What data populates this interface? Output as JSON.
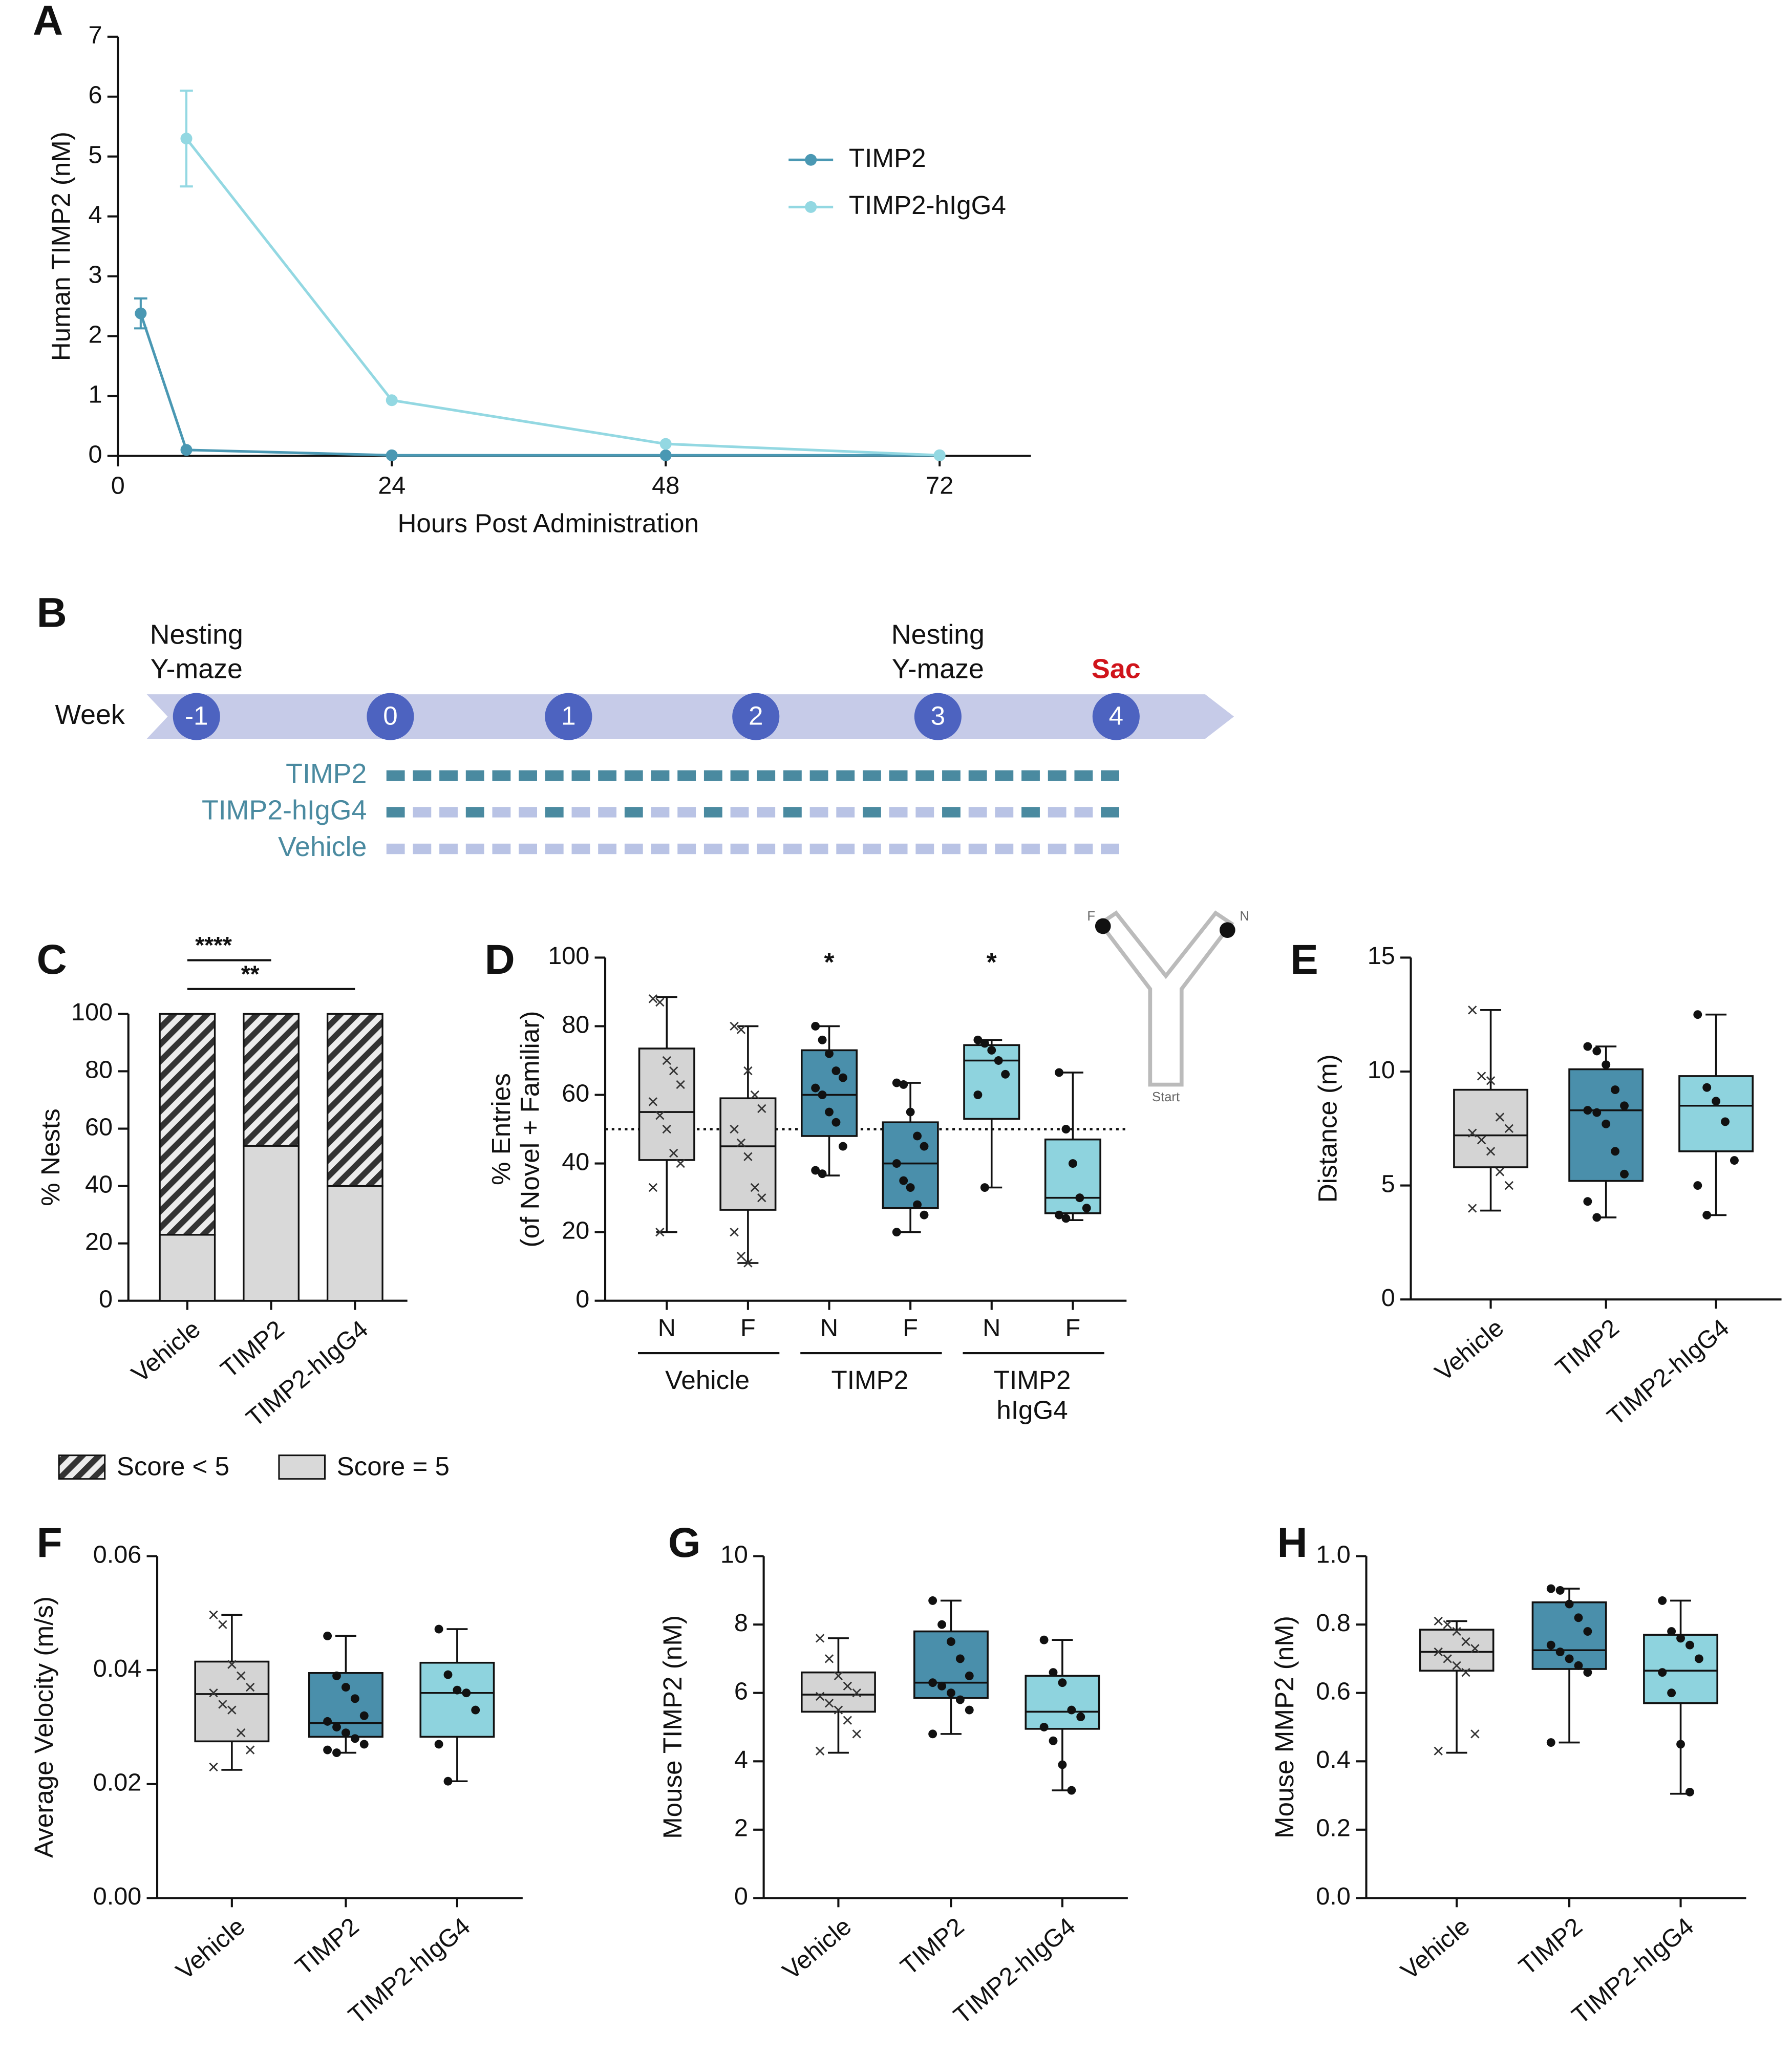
{
  "chart_data": [
    {
      "type": "line",
      "panel": "A",
      "x_label": "Hours Post Administration",
      "y_label": "Human TIMP2 (nM)",
      "xlim": [
        0,
        80
      ],
      "xticks": [
        0,
        24,
        48,
        72
      ],
      "ylim": [
        0,
        7
      ],
      "yticks": [
        0,
        1,
        2,
        3,
        4,
        5,
        6,
        7
      ],
      "series": [
        {
          "name": "TIMP2",
          "color": "#4a98b3",
          "x": [
            2,
            6,
            24,
            48,
            72
          ],
          "values": [
            2.38,
            0.1,
            0.01,
            0.01,
            0.01
          ],
          "errors": [
            0.25,
            null,
            null,
            null,
            null
          ]
        },
        {
          "name": "TIMP2-hIgG4",
          "color": "#93d8e2",
          "x": [
            6,
            24,
            48,
            72
          ],
          "values": [
            5.3,
            0.93,
            0.2,
            0.01
          ],
          "errors": [
            0.8,
            null,
            null,
            null
          ]
        }
      ]
    },
    {
      "type": "timeline",
      "panel": "B",
      "axis_label": "Week",
      "weeks": [
        -1,
        0,
        1,
        2,
        3,
        4
      ],
      "events": [
        {
          "week": -1,
          "label": [
            "Nesting",
            "Y-maze"
          ]
        },
        {
          "week": 3,
          "label": [
            "Nesting",
            "Y-maze"
          ]
        },
        {
          "week": 4,
          "label": [
            "Sac"
          ],
          "color": "#d0141b"
        }
      ],
      "rows": [
        {
          "name": "TIMP2",
          "color": "#4a8aa0"
        },
        {
          "name": "TIMP2-hIgG4",
          "color": "#4a8aa0"
        },
        {
          "name": "Vehicle",
          "color": "#4a8aa0"
        }
      ]
    },
    {
      "type": "stacked_bar",
      "panel": "C",
      "y_label": "% Nests",
      "categories": [
        "Vehicle",
        "TIMP2",
        "TIMP2-hIgG4"
      ],
      "ylim": [
        0,
        100
      ],
      "yticks": [
        0,
        20,
        40,
        60,
        80,
        100
      ],
      "series": [
        {
          "name": "Score < 5",
          "hatch": true,
          "color": "#9a9a9a",
          "values": [
            77,
            46,
            60
          ]
        },
        {
          "name": "Score = 5",
          "color": "#d9d9d9",
          "values": [
            23,
            54,
            40
          ]
        }
      ],
      "annotations": [
        {
          "label": "****",
          "categories": [
            "Vehicle",
            "TIMP2"
          ]
        },
        {
          "label": "**",
          "categories": [
            "Vehicle",
            "TIMP2-hIgG4"
          ]
        }
      ]
    },
    {
      "type": "box",
      "panel": "D",
      "y_label": [
        "% Entries",
        "(of Novel + Familiar)"
      ],
      "ylim": [
        0,
        100
      ],
      "yticks": [
        0,
        20,
        40,
        60,
        80,
        100
      ],
      "reference_line": 50,
      "categories": [
        "N",
        "F",
        "N",
        "F",
        "N",
        "F"
      ],
      "groups": [
        [
          "Vehicle"
        ],
        [
          "TIMP2"
        ],
        [
          "TIMP2",
          "hIgG4"
        ]
      ],
      "inset_labels": [
        "F",
        "N",
        "Start"
      ],
      "boxes": [
        {
          "color": "#d4d4d4",
          "marker": "x",
          "min": 20,
          "q1": 41,
          "median": 55,
          "q3": 73.5,
          "max": 88.5,
          "points": [
            88,
            87,
            70,
            67,
            63,
            58,
            54,
            50,
            43,
            40,
            33,
            20
          ]
        },
        {
          "color": "#d4d4d4",
          "marker": "x",
          "min": 11,
          "q1": 26.5,
          "median": 45,
          "q3": 59,
          "max": 80,
          "points": [
            80,
            79,
            67,
            60,
            56,
            50,
            46,
            42,
            33,
            30,
            20,
            13,
            11
          ]
        },
        {
          "color": "#4a8fab",
          "marker": "dot",
          "annotation": "*",
          "min": 36.5,
          "q1": 48,
          "median": 60,
          "q3": 73,
          "max": 80,
          "points": [
            80,
            76,
            72,
            67,
            65,
            62,
            60,
            55,
            52,
            45,
            38,
            37
          ]
        },
        {
          "color": "#4a8fab",
          "marker": "dot",
          "min": 20,
          "q1": 27,
          "median": 40,
          "q3": 52,
          "max": 63.5,
          "points": [
            63.5,
            63,
            55,
            48,
            45,
            40,
            35,
            33,
            28,
            25,
            20
          ]
        },
        {
          "color": "#8ed3de",
          "marker": "dot",
          "annotation": "*",
          "min": 33,
          "q1": 53,
          "median": 70,
          "q3": 74.5,
          "max": 76,
          "points": [
            76,
            75,
            73,
            70,
            66,
            60,
            33
          ]
        },
        {
          "color": "#8ed3de",
          "marker": "dot",
          "min": 23.5,
          "q1": 25.5,
          "median": 30,
          "q3": 47,
          "max": 66.5,
          "points": [
            66.5,
            50,
            40,
            30,
            27,
            25,
            24
          ]
        }
      ]
    },
    {
      "type": "box",
      "panel": "E",
      "y_label": [
        "Distance (m)"
      ],
      "ylim": [
        0,
        15
      ],
      "yticks": [
        0,
        5,
        10,
        15
      ],
      "categories": [
        "Vehicle",
        "TIMP2",
        "TIMP2-hIgG4"
      ],
      "boxes": [
        {
          "color": "#d4d4d4",
          "marker": "x",
          "min": 3.9,
          "q1": 5.8,
          "median": 7.2,
          "q3": 9.2,
          "max": 12.7,
          "points": [
            12.7,
            9.8,
            9.6,
            8.0,
            7.5,
            7.3,
            7.0,
            6.5,
            5.6,
            5.0,
            4.0
          ]
        },
        {
          "color": "#4a8fab",
          "marker": "dot",
          "min": 3.6,
          "q1": 5.2,
          "median": 8.3,
          "q3": 10.1,
          "max": 11.1,
          "points": [
            11.1,
            10.9,
            10.3,
            9.2,
            8.5,
            8.3,
            8.2,
            7.7,
            6.5,
            5.5,
            4.3,
            3.6
          ]
        },
        {
          "color": "#8ed3de",
          "marker": "dot",
          "min": 3.7,
          "q1": 6.5,
          "median": 8.5,
          "q3": 9.8,
          "max": 12.5,
          "points": [
            12.5,
            9.3,
            8.7,
            7.8,
            6.1,
            5.0,
            3.7
          ]
        }
      ]
    },
    {
      "type": "box",
      "panel": "F",
      "y_label": [
        "Average Velocity (m/s)"
      ],
      "ylim": [
        0,
        0.06
      ],
      "yticks": [
        {
          "value": 0,
          "label": "0.00"
        },
        0.02,
        0.04,
        0.06
      ],
      "categories": [
        "Vehicle",
        "TIMP2",
        "TIMP2-hIgG4"
      ],
      "boxes": [
        {
          "color": "#d4d4d4",
          "marker": "x",
          "min": 0.0225,
          "q1": 0.0275,
          "median": 0.0358,
          "q3": 0.0415,
          "max": 0.0497,
          "points": [
            0.0497,
            0.048,
            0.041,
            0.039,
            0.037,
            0.036,
            0.034,
            0.033,
            0.029,
            0.026,
            0.023
          ]
        },
        {
          "color": "#4a8fab",
          "marker": "dot",
          "min": 0.0255,
          "q1": 0.0283,
          "median": 0.0307,
          "q3": 0.0395,
          "max": 0.046,
          "points": [
            0.046,
            0.039,
            0.037,
            0.035,
            0.032,
            0.031,
            0.03,
            0.029,
            0.028,
            0.027,
            0.026,
            0.0255
          ]
        },
        {
          "color": "#8ed3de",
          "marker": "dot",
          "min": 0.0205,
          "q1": 0.0283,
          "median": 0.036,
          "q3": 0.0413,
          "max": 0.0472,
          "points": [
            0.0472,
            0.0392,
            0.0365,
            0.036,
            0.033,
            0.027,
            0.0205
          ]
        }
      ]
    },
    {
      "type": "box",
      "panel": "G",
      "y_label": [
        "Mouse TIMP2 (nM)"
      ],
      "ylim": [
        0,
        10
      ],
      "yticks": [
        0,
        2,
        4,
        6,
        8,
        10
      ],
      "categories": [
        "Vehicle",
        "TIMP2",
        "TIMP2-hIgG4"
      ],
      "boxes": [
        {
          "color": "#d4d4d4",
          "marker": "x",
          "min": 4.25,
          "q1": 5.45,
          "median": 5.95,
          "q3": 6.6,
          "max": 7.6,
          "points": [
            7.6,
            7.0,
            6.5,
            6.2,
            6.0,
            5.9,
            5.7,
            5.5,
            5.2,
            4.8,
            4.3
          ]
        },
        {
          "color": "#4a8fab",
          "marker": "dot",
          "min": 4.8,
          "q1": 5.85,
          "median": 6.3,
          "q3": 7.8,
          "max": 8.7,
          "points": [
            8.7,
            8.0,
            7.5,
            7.0,
            6.5,
            6.3,
            6.2,
            6.0,
            5.8,
            5.5,
            4.8
          ]
        },
        {
          "color": "#8ed3de",
          "marker": "dot",
          "min": 3.15,
          "q1": 4.95,
          "median": 5.45,
          "q3": 6.5,
          "max": 7.55,
          "points": [
            7.55,
            6.6,
            6.3,
            5.5,
            5.3,
            5.0,
            4.6,
            3.9,
            3.15
          ]
        }
      ]
    },
    {
      "type": "box",
      "panel": "H",
      "y_label": [
        "Mouse MMP2 (nM)"
      ],
      "ylim": [
        0,
        1
      ],
      "yticks": [
        {
          "value": 0,
          "label": "0.0"
        },
        0.2,
        0.4,
        0.6,
        0.8,
        {
          "value": 1,
          "label": "1.0"
        }
      ],
      "categories": [
        "Vehicle",
        "TIMP2",
        "TIMP2-hIgG4"
      ],
      "boxes": [
        {
          "color": "#d4d4d4",
          "marker": "x",
          "min": 0.425,
          "q1": 0.665,
          "median": 0.72,
          "q3": 0.785,
          "max": 0.81,
          "points": [
            0.81,
            0.8,
            0.78,
            0.75,
            0.73,
            0.72,
            0.7,
            0.68,
            0.66,
            0.48,
            0.43
          ]
        },
        {
          "color": "#4a8fab",
          "marker": "dot",
          "min": 0.455,
          "q1": 0.67,
          "median": 0.725,
          "q3": 0.865,
          "max": 0.905,
          "points": [
            0.905,
            0.9,
            0.86,
            0.82,
            0.78,
            0.74,
            0.72,
            0.7,
            0.68,
            0.66,
            0.455
          ]
        },
        {
          "color": "#8ed3de",
          "marker": "dot",
          "min": 0.305,
          "q1": 0.57,
          "median": 0.665,
          "q3": 0.77,
          "max": 0.87,
          "points": [
            0.87,
            0.78,
            0.76,
            0.74,
            0.7,
            0.66,
            0.6,
            0.45,
            0.31
          ]
        }
      ]
    }
  ]
}
